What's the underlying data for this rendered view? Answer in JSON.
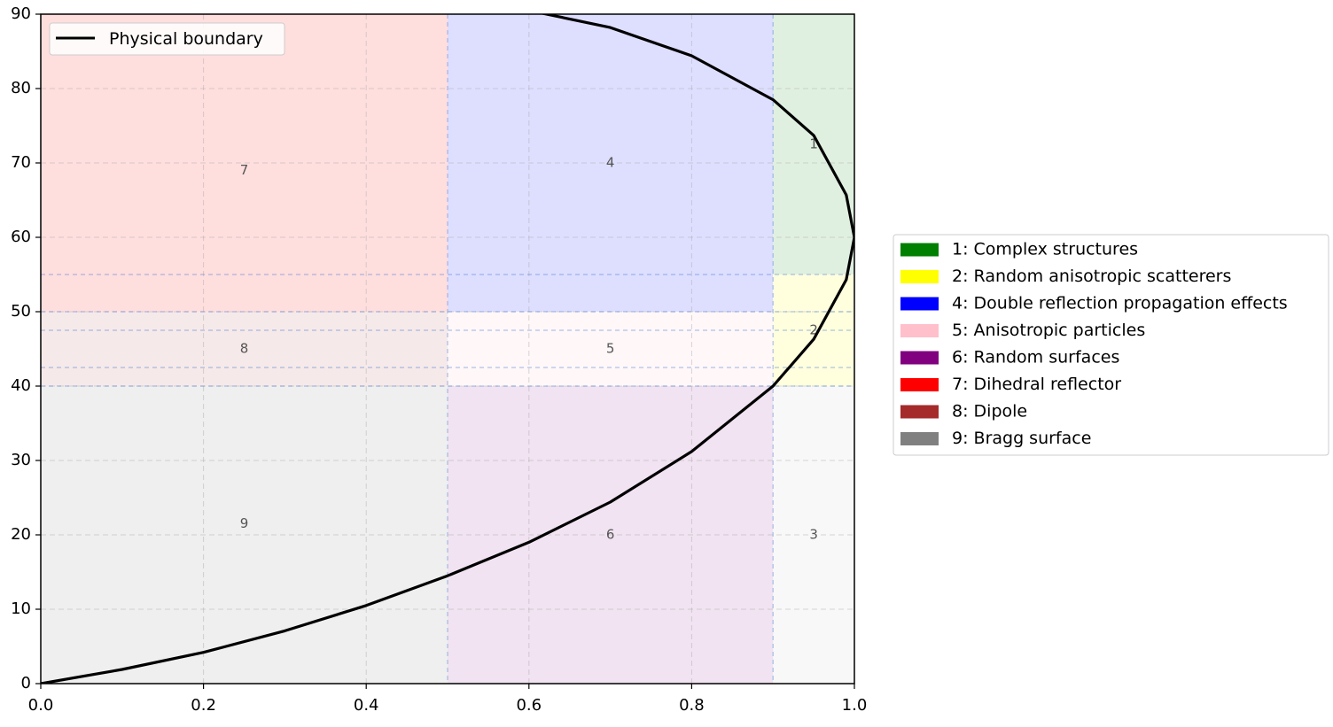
{
  "chart_data": {
    "type": "area",
    "title": "",
    "xlabel": "",
    "ylabel": "",
    "xlim": [
      0,
      1
    ],
    "ylim": [
      0,
      90
    ],
    "grid": true,
    "x_ticks": [
      0.0,
      0.2,
      0.4,
      0.6,
      0.8,
      1.0
    ],
    "x_tick_labels": [
      "0.0",
      "0.2",
      "0.4",
      "0.6",
      "0.8",
      "1.0"
    ],
    "y_ticks": [
      0,
      10,
      20,
      30,
      40,
      50,
      60,
      70,
      80,
      90
    ],
    "y_tick_labels": [
      "0",
      "10",
      "20",
      "30",
      "40",
      "50",
      "60",
      "70",
      "80",
      "90"
    ],
    "regions": [
      {
        "id": "7",
        "x0": 0.0,
        "x1": 0.5,
        "y0": 50,
        "y1": 90,
        "color": "#ff0000",
        "opacity": 0.13,
        "label_pos": [
          0.25,
          69
        ]
      },
      {
        "id": "8",
        "x0": 0.0,
        "x1": 0.5,
        "y0": 40,
        "y1": 50,
        "color": "#a52a2a",
        "opacity": 0.1,
        "label_pos": [
          0.25,
          45
        ]
      },
      {
        "id": "9",
        "x0": 0.0,
        "x1": 0.5,
        "y0": 0,
        "y1": 40,
        "color": "#808080",
        "opacity": 0.13,
        "label_pos": [
          0.25,
          21.5
        ]
      },
      {
        "id": "4",
        "x0": 0.5,
        "x1": 0.9,
        "y0": 50,
        "y1": 90,
        "color": "#0000ff",
        "opacity": 0.13,
        "label_pos": [
          0.7,
          70
        ]
      },
      {
        "id": "5",
        "x0": 0.5,
        "x1": 0.9,
        "y0": 40,
        "y1": 50,
        "color": "#ffc0cb",
        "opacity": 0.13,
        "label_pos": [
          0.7,
          45
        ]
      },
      {
        "id": "6",
        "x0": 0.5,
        "x1": 0.9,
        "y0": 0,
        "y1": 40,
        "color": "#800080",
        "opacity": 0.11,
        "label_pos": [
          0.7,
          20
        ]
      },
      {
        "id": "1",
        "x0": 0.9,
        "x1": 1.0,
        "y0": 55,
        "y1": 90,
        "color": "#008000",
        "opacity": 0.12,
        "label_pos": [
          0.95,
          72.5
        ]
      },
      {
        "id": "2",
        "x0": 0.9,
        "x1": 1.0,
        "y0": 40,
        "y1": 55,
        "color": "#ffff00",
        "opacity": 0.13,
        "label_pos": [
          0.95,
          47.5
        ]
      },
      {
        "id": "3",
        "x0": 0.9,
        "x1": 1.0,
        "y0": 0,
        "y1": 40,
        "color": "#d3d3d3",
        "opacity": 0.15,
        "label_pos": [
          0.95,
          20
        ]
      }
    ],
    "dashed_lines": {
      "horizontal": [
        40,
        42.5,
        47.5,
        50,
        55
      ],
      "vertical": [
        0.5,
        0.9
      ],
      "color": "#4a7fd4"
    },
    "boundary": {
      "name": "Physical boundary",
      "color": "#000000",
      "points": [
        [
          0.0,
          0
        ],
        [
          0.1,
          1.9
        ],
        [
          0.2,
          4.2
        ],
        [
          0.3,
          7.1
        ],
        [
          0.4,
          10.5
        ],
        [
          0.5,
          14.5
        ],
        [
          0.6,
          19.0
        ],
        [
          0.7,
          24.4
        ],
        [
          0.8,
          31.2
        ],
        [
          0.9,
          40.0
        ],
        [
          0.95,
          46.3
        ],
        [
          0.99,
          54.3
        ],
        [
          1.0,
          60.0
        ],
        [
          0.99,
          65.7
        ],
        [
          0.95,
          73.7
        ],
        [
          0.9,
          78.5
        ],
        [
          0.8,
          84.4
        ],
        [
          0.7,
          88.2
        ],
        [
          0.6,
          90.5
        ]
      ]
    },
    "legend_line": {
      "placement": "upper-left",
      "entries": [
        {
          "label": "Physical boundary",
          "color": "#000000"
        }
      ]
    },
    "legend_regions": {
      "placement": "outside-right",
      "entries": [
        {
          "label": "1: Complex structures",
          "color": "#008000"
        },
        {
          "label": "2: Random anisotropic scatterers",
          "color": "#ffff00"
        },
        {
          "label": "4: Double reflection propagation effects",
          "color": "#0000ff"
        },
        {
          "label": "5: Anisotropic particles",
          "color": "#ffc0cb"
        },
        {
          "label": "6: Random surfaces",
          "color": "#800080"
        },
        {
          "label": "7: Dihedral reflector",
          "color": "#ff0000"
        },
        {
          "label": "8: Dipole",
          "color": "#a52a2a"
        },
        {
          "label": "9: Bragg surface",
          "color": "#808080"
        }
      ]
    }
  }
}
